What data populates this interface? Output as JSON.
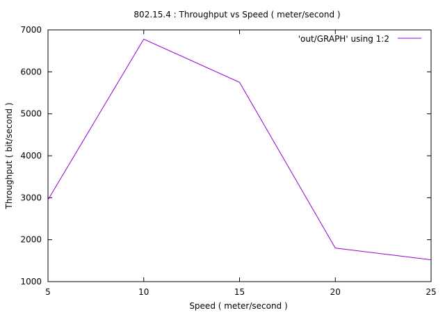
{
  "chart_data": {
    "type": "line",
    "title": "802.15.4 : Throughput vs Speed ( meter/second )",
    "xlabel": "Speed ( meter/second )",
    "ylabel": "Throughput ( bit/second )",
    "xlim": [
      5,
      25
    ],
    "ylim": [
      1000,
      7000
    ],
    "x_ticks": [
      "5",
      "10",
      "15",
      "20",
      "25"
    ],
    "y_ticks": [
      "1000",
      "2000",
      "3000",
      "4000",
      "5000",
      "6000",
      "7000"
    ],
    "grid": false,
    "legend_position": "top-right",
    "series": [
      {
        "name": "'out/GRAPH' using 1:2",
        "color": "#9400d3",
        "x": [
          5,
          10,
          15,
          20,
          25
        ],
        "y": [
          2950,
          6780,
          5750,
          1800,
          1520
        ]
      }
    ]
  }
}
